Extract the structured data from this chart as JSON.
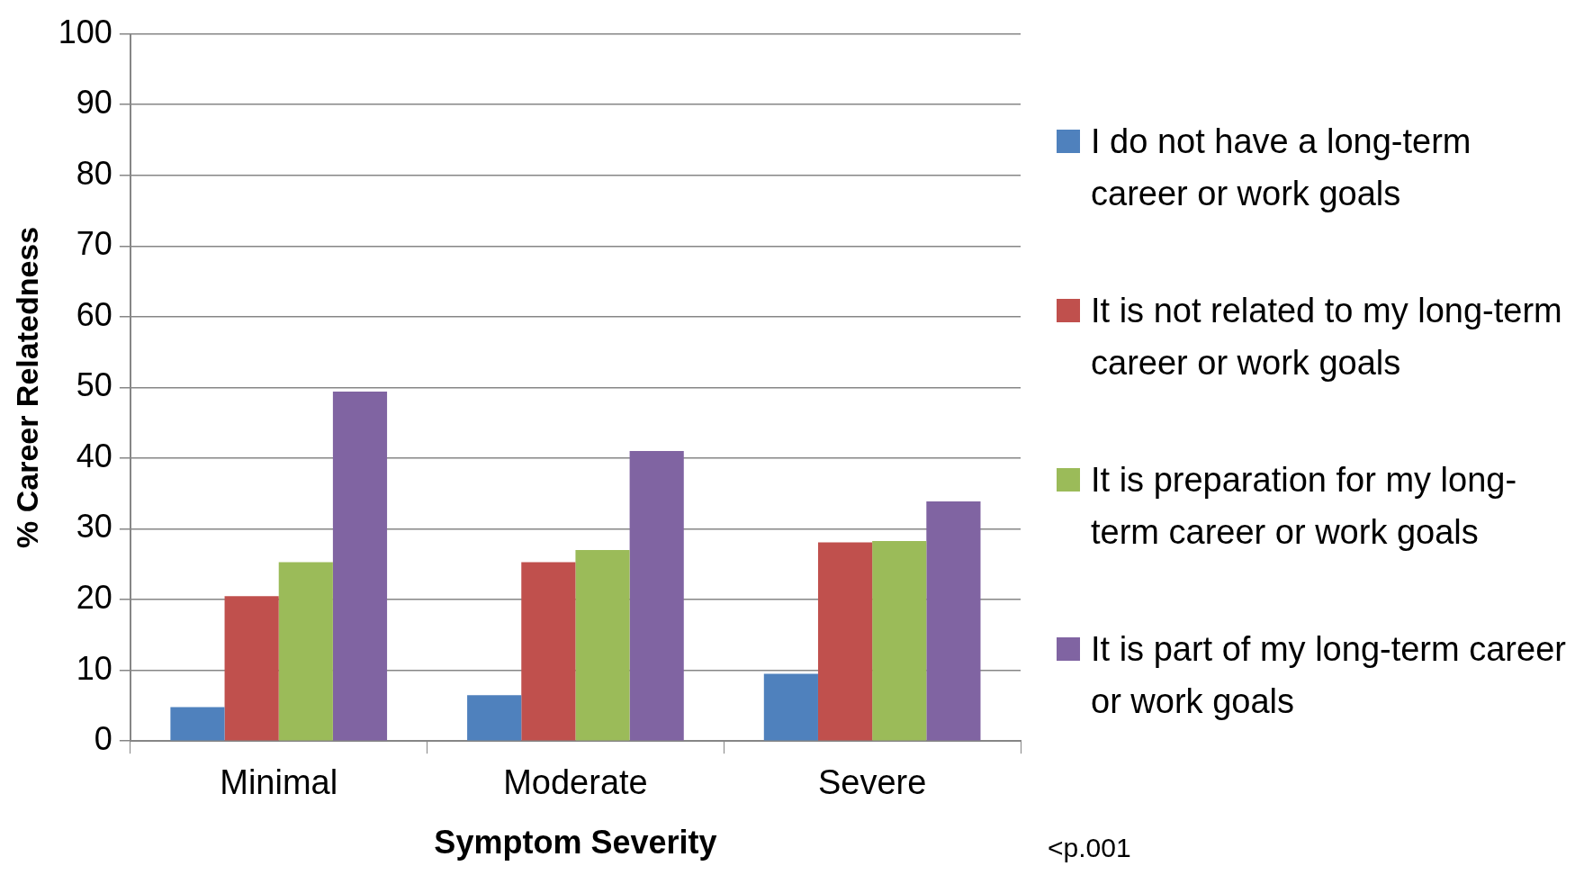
{
  "chart_data": {
    "type": "bar",
    "xlabel": "Symptom Severity",
    "ylabel": "% Career Relatedness",
    "categories": [
      "Minimal",
      "Moderate",
      "Severe"
    ],
    "series": [
      {
        "name": "I do not have a long-term career or work goals",
        "color": "#4f81bd",
        "values": [
          4.8,
          6.5,
          9.5
        ]
      },
      {
        "name": "It is not related to my long-term career or work goals",
        "color": "#c0504d",
        "values": [
          20.5,
          25.3,
          28.1
        ]
      },
      {
        "name": "It is preparation for my long-term career or work goals",
        "color": "#9bbb59",
        "values": [
          25.3,
          27.0,
          28.3
        ]
      },
      {
        "name": "It is part of my long-term career or work goals",
        "color": "#8064a2",
        "values": [
          49.4,
          41.0,
          33.9
        ]
      }
    ],
    "ylim": [
      0,
      100
    ],
    "yticks": [
      0,
      10,
      20,
      30,
      40,
      50,
      60,
      70,
      80,
      90,
      100
    ],
    "grid": "y",
    "legend": "right",
    "annotations": [
      "<p.001"
    ]
  }
}
